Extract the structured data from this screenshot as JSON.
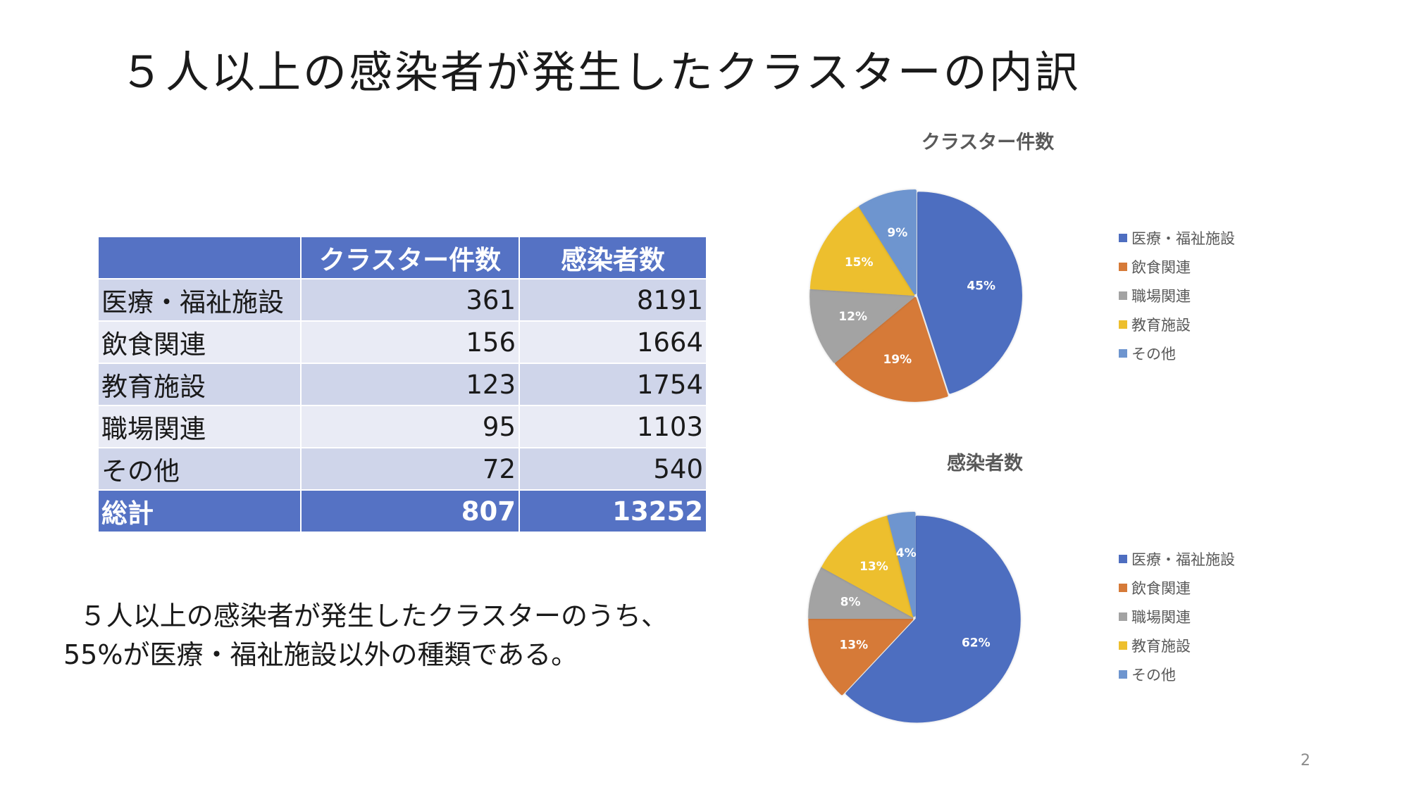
{
  "title": "５人以上の感染者が発生したクラスターの内訳",
  "table": {
    "headers": [
      "",
      "クラスター件数",
      "感染者数"
    ],
    "rows": [
      {
        "label": "医療・福祉施設",
        "clusters": "361",
        "infected": "8191"
      },
      {
        "label": "飲食関連",
        "clusters": "156",
        "infected": "1664"
      },
      {
        "label": "教育施設",
        "clusters": "123",
        "infected": "1754"
      },
      {
        "label": "職場関連",
        "clusters": "95",
        "infected": "1103"
      },
      {
        "label": "その他",
        "clusters": "72",
        "infected": "540"
      }
    ],
    "total": {
      "label": "総計",
      "clusters": "807",
      "infected": "13252"
    }
  },
  "summary": "５人以上の感染者が発生したクラスターのうち、55%が医療・福祉施設以外の種類である。",
  "page_number": "2",
  "chart_data": [
    {
      "type": "pie",
      "title": "クラスター件数",
      "categories": [
        "医療・福祉施設",
        "飲食関連",
        "職場関連",
        "教育施設",
        "その他"
      ],
      "values": [
        45,
        19,
        12,
        15,
        9
      ],
      "labels": [
        "45%",
        "19%",
        "12%",
        "15%",
        "9%"
      ],
      "colors": [
        "#4e6ec0",
        "#d67a38",
        "#a3a3a3",
        "#edbf2e",
        "#6e95cf"
      ],
      "legend_position": "right"
    },
    {
      "type": "pie",
      "title": "感染者数",
      "categories": [
        "医療・福祉施設",
        "飲食関連",
        "職場関連",
        "教育施設",
        "その他"
      ],
      "values": [
        62,
        13,
        8,
        13,
        4
      ],
      "labels": [
        "62%",
        "13%",
        "8%",
        "13%",
        "4%"
      ],
      "colors": [
        "#4e6ec0",
        "#d67a38",
        "#a3a3a3",
        "#edbf2e",
        "#6e95cf"
      ],
      "legend_position": "right"
    }
  ]
}
